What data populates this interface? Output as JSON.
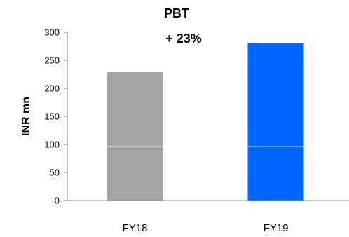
{
  "chart_data": {
    "type": "bar",
    "title": "PBT",
    "annotation": "+ 23%",
    "xlabel": "",
    "ylabel": "INR mn",
    "ylim": [
      0,
      300
    ],
    "yticks": [
      "0",
      "50",
      "100",
      "150",
      "200",
      "250",
      "300"
    ],
    "categories": [
      "FY18",
      "FY19"
    ],
    "values": [
      229,
      281
    ],
    "segment_divider_value": 96,
    "colors": [
      "#a6a6a6",
      "#0066ff"
    ],
    "divider_color": "#ffffff",
    "grid": false,
    "legend": "none"
  }
}
